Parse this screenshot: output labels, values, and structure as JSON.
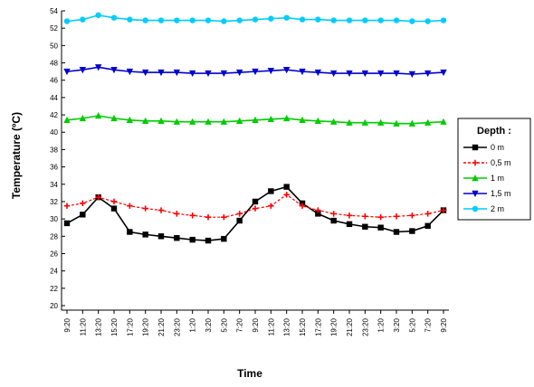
{
  "chart_data": {
    "type": "line",
    "title": "",
    "xlabel": "Time",
    "ylabel": "Temperature (ºC)",
    "ylim": [
      20,
      54
    ],
    "yticks": [
      20,
      22,
      24,
      26,
      28,
      30,
      32,
      34,
      36,
      38,
      40,
      42,
      44,
      46,
      48,
      50,
      52,
      54
    ],
    "grid": false,
    "legend": {
      "title": "Depth :",
      "placement": "right"
    },
    "categories": [
      "9:20",
      "11:20",
      "13:20",
      "15:20",
      "17:20",
      "19:20",
      "21:20",
      "23:20",
      "1:20",
      "3:20",
      "5:20",
      "7:20",
      "9:20",
      "11:20",
      "13:20",
      "15:20",
      "17:20",
      "19:20",
      "21:20",
      "23:20",
      "1:20",
      "3:20",
      "5:20",
      "7:20",
      "9:20"
    ],
    "series": [
      {
        "name": "0 m",
        "color": "#000000",
        "marker": "square",
        "values": [
          29.5,
          30.5,
          32.5,
          31.2,
          28.5,
          28.2,
          28.0,
          27.8,
          27.6,
          27.5,
          27.7,
          29.8,
          32.0,
          33.2,
          33.7,
          31.8,
          30.6,
          29.8,
          29.4,
          29.1,
          29.0,
          28.5,
          28.6,
          29.2,
          31.0
        ],
        "style": "solid"
      },
      {
        "name": "0,5 m",
        "color": "#ff0000",
        "marker": "cross",
        "values": [
          31.5,
          31.8,
          32.5,
          32.0,
          31.5,
          31.2,
          31.0,
          30.6,
          30.4,
          30.2,
          30.2,
          30.6,
          31.2,
          31.5,
          32.8,
          31.5,
          31.0,
          30.6,
          30.4,
          30.3,
          30.2,
          30.3,
          30.4,
          30.6,
          31.0
        ],
        "style": "dashed"
      },
      {
        "name": "1 m",
        "color": "#00cc00",
        "marker": "triangle-up",
        "values": [
          41.4,
          41.6,
          41.9,
          41.6,
          41.4,
          41.3,
          41.3,
          41.2,
          41.2,
          41.2,
          41.2,
          41.3,
          41.4,
          41.5,
          41.6,
          41.4,
          41.3,
          41.2,
          41.1,
          41.1,
          41.1,
          41.0,
          41.0,
          41.1,
          41.2
        ],
        "style": "solid"
      },
      {
        "name": "1,5 m",
        "color": "#0000cc",
        "marker": "triangle-down",
        "values": [
          47.0,
          47.2,
          47.5,
          47.2,
          47.0,
          46.9,
          46.9,
          46.9,
          46.8,
          46.8,
          46.8,
          46.9,
          47.0,
          47.1,
          47.2,
          47.0,
          46.9,
          46.8,
          46.8,
          46.8,
          46.8,
          46.8,
          46.7,
          46.8,
          46.9
        ],
        "style": "solid"
      },
      {
        "name": "2 m",
        "color": "#00ccff",
        "marker": "circle",
        "values": [
          52.8,
          53.0,
          53.5,
          53.2,
          53.0,
          52.9,
          52.9,
          52.9,
          52.9,
          52.9,
          52.8,
          52.9,
          53.0,
          53.1,
          53.2,
          53.0,
          53.0,
          52.9,
          52.9,
          52.9,
          52.9,
          52.9,
          52.8,
          52.8,
          52.9
        ],
        "style": "solid"
      }
    ]
  }
}
